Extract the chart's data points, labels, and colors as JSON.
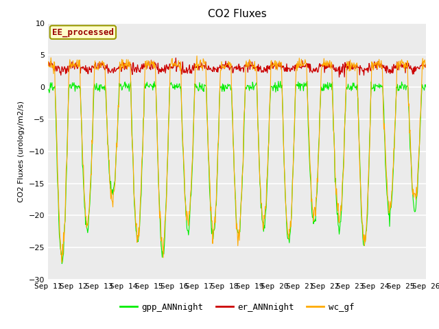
{
  "title": "CO2 Fluxes",
  "ylabel": "CO2 Fluxes (urology/m2/s)",
  "ylim": [
    -30,
    10
  ],
  "yticks": [
    -30,
    -25,
    -20,
    -15,
    -10,
    -5,
    0,
    5,
    10
  ],
  "n_days": 15,
  "xtick_labels": [
    "Sep 11",
    "Sep 12",
    "Sep 13",
    "Sep 14",
    "Sep 15",
    "Sep 16",
    "Sep 17",
    "Sep 18",
    "Sep 19",
    "Sep 20",
    "Sep 21",
    "Sep 22",
    "Sep 23",
    "Sep 24",
    "Sep 25",
    "Sep 26"
  ],
  "line_colors": {
    "gpp": "#00ee00",
    "er": "#cc0000",
    "wc": "#ffaa00"
  },
  "legend_labels": [
    "gpp_ANNnight",
    "er_ANNnight",
    "wc_gf"
  ],
  "annotation_text": "EE_processed",
  "annotation_color": "#990000",
  "annotation_bg": "#ffffcc",
  "annotation_edge": "#999900",
  "bg_color": "#ebebeb",
  "fig_bg": "#ffffff",
  "grid_color": "#ffffff",
  "title_fontsize": 11,
  "label_fontsize": 8,
  "tick_fontsize": 8,
  "legend_fontsize": 9
}
